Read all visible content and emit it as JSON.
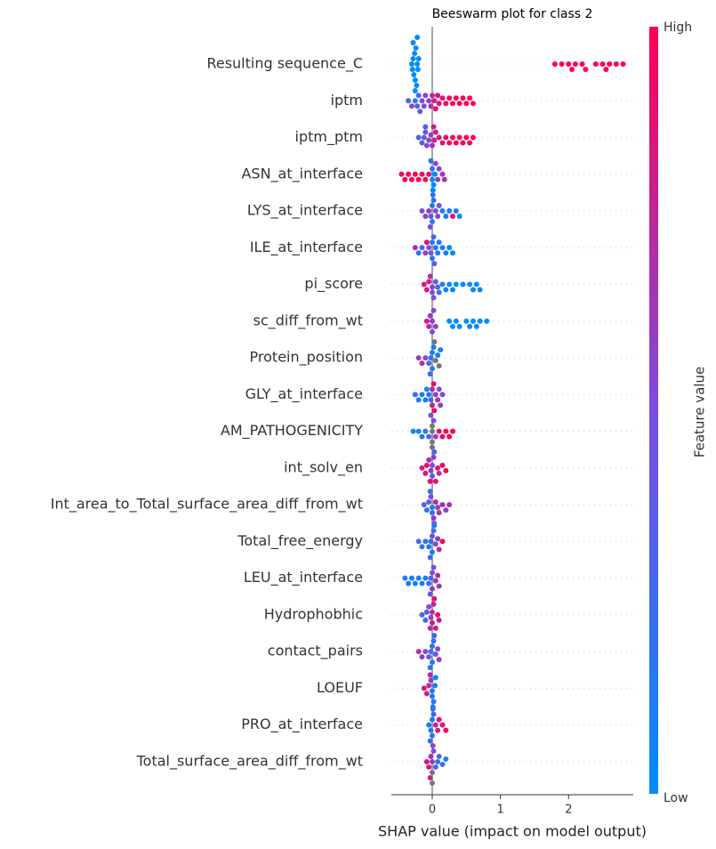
{
  "chart_data": {
    "type": "beeswarm",
    "title": "Beeswarm plot for class 2",
    "x_label": "SHAP value (impact on model output)",
    "xlim": [
      -0.6,
      2.95
    ],
    "xticks": [
      0,
      1,
      2
    ],
    "colorbar_label": "Feature value",
    "colorbar_high": "High",
    "colorbar_low": "Low",
    "colormap": [
      "#008bfb",
      "#7c4ce0",
      "#ff0052"
    ],
    "missing_color": "#777777",
    "series": [
      {
        "name": "Resulting sequence_C",
        "values": [
          -0.3,
          -0.29,
          -0.28,
          -0.27,
          -0.26,
          -0.25,
          -0.24,
          -0.23,
          -0.22,
          -0.21,
          -0.2,
          -0.28,
          -0.25,
          -0.22,
          1.8,
          1.9,
          2.0,
          2.05,
          2.1,
          2.2,
          2.25,
          2.4,
          2.5,
          2.55,
          2.6,
          2.7,
          2.8
        ],
        "feature_values": [
          0,
          0,
          0,
          0,
          0,
          0,
          0,
          0,
          0,
          0,
          0,
          0,
          0,
          0,
          1,
          1,
          1,
          1,
          1,
          1,
          1,
          1,
          1,
          1,
          1,
          1,
          1
        ]
      },
      {
        "name": "iptm",
        "values": [
          -0.35,
          -0.3,
          -0.25,
          -0.22,
          -0.2,
          -0.15,
          -0.12,
          -0.1,
          -0.05,
          -0.02,
          0,
          0.03,
          0.05,
          0.1,
          0.15,
          0.2,
          0.25,
          0.3,
          0.35,
          0.4,
          0.45,
          0.5,
          0.55,
          0.6,
          -0.18,
          0.08
        ],
        "feature_values": [
          0.3,
          0.5,
          0.2,
          0.4,
          0.3,
          0.5,
          0.45,
          0.6,
          0.55,
          0.7,
          0.75,
          0.8,
          0.85,
          0.9,
          0.85,
          0.95,
          1,
          0.9,
          1,
          1,
          0.95,
          1,
          1,
          0.95,
          0.35,
          0.9
        ]
      },
      {
        "name": "iptm_ptm",
        "values": [
          -0.2,
          -0.15,
          -0.12,
          -0.1,
          -0.08,
          -0.05,
          -0.02,
          0,
          0.03,
          0.05,
          0.1,
          0.15,
          0.2,
          0.25,
          0.3,
          0.35,
          0.4,
          0.45,
          0.5,
          0.55,
          0.6,
          -0.1,
          0.02
        ],
        "feature_values": [
          0.3,
          0.35,
          0.45,
          0.4,
          0.5,
          0.55,
          0.6,
          0.7,
          0.75,
          0.8,
          0.9,
          0.85,
          0.95,
          1,
          0.9,
          1,
          1,
          0.95,
          1,
          1,
          0.95,
          0.3,
          0.8
        ]
      },
      {
        "name": "ASN_at_interface",
        "values": [
          -0.45,
          -0.4,
          -0.35,
          -0.3,
          -0.25,
          -0.2,
          -0.15,
          -0.1,
          -0.05,
          0,
          0,
          0.02,
          0.04,
          0.05,
          0.08,
          0.1,
          0.15,
          0.18,
          -0.02,
          0.01
        ],
        "feature_values": [
          1,
          1,
          1,
          1,
          1,
          1,
          1,
          0.95,
          0.9,
          0,
          0.1,
          0,
          0.05,
          0.5,
          0.6,
          0.55,
          0.6,
          0.65,
          0.2,
          0
        ]
      },
      {
        "name": "LYS_at_interface",
        "values": [
          -0.15,
          -0.1,
          -0.05,
          -0.02,
          0,
          0,
          0.02,
          0.05,
          0.08,
          0.1,
          0.15,
          0.2,
          0.25,
          0.3,
          0.35,
          0.4,
          -0.03,
          0.01
        ],
        "feature_values": [
          0.5,
          0.55,
          0.6,
          0.4,
          0.1,
          0.2,
          0.3,
          0.5,
          0.6,
          0.5,
          0.1,
          0.05,
          0.1,
          0.9,
          0.1,
          0,
          0.5,
          0.2
        ]
      },
      {
        "name": "ILE_at_interface",
        "values": [
          -0.25,
          -0.2,
          -0.15,
          -0.1,
          -0.05,
          -0.02,
          0,
          0,
          0.02,
          0.05,
          0.08,
          0.1,
          0.15,
          0.2,
          0.25,
          0.3,
          -0.08,
          0.03
        ],
        "feature_values": [
          0.7,
          0.2,
          0.3,
          0.6,
          0.5,
          0.4,
          0.1,
          0.2,
          0.3,
          0.2,
          0.1,
          0.15,
          0.1,
          0.05,
          0.05,
          0,
          0.9,
          0.4
        ]
      },
      {
        "name": "pi_score",
        "values": [
          -0.12,
          -0.08,
          -0.05,
          -0.03,
          0,
          0,
          0.02,
          0.05,
          0.08,
          0.1,
          0.15,
          0.2,
          0.25,
          0.3,
          0.35,
          0.45,
          0.55,
          0.6,
          0.65,
          0.7
        ],
        "feature_values": [
          0.9,
          0.85,
          0.8,
          0.7,
          0.6,
          0.5,
          0.5,
          0.4,
          0.3,
          0.2,
          0.1,
          0.05,
          0.05,
          0,
          0,
          0,
          0,
          0,
          0,
          0
        ]
      },
      {
        "name": "sc_diff_from_wt",
        "values": [
          -0.08,
          -0.05,
          -0.03,
          0,
          0,
          0.02,
          0.05,
          0.25,
          0.3,
          0.35,
          0.4,
          0.5,
          0.55,
          0.6,
          0.65,
          0.7,
          0.8
        ],
        "feature_values": [
          0.8,
          0.7,
          0.6,
          0.6,
          0.5,
          0.55,
          0.6,
          0,
          0,
          0,
          0,
          0,
          0,
          0,
          0,
          0,
          0
        ]
      },
      {
        "name": "Protein_position",
        "values": [
          -0.2,
          -0.15,
          -0.1,
          -0.05,
          -0.02,
          0,
          0,
          0.02,
          0.05,
          0.08,
          0.1,
          0.12,
          -0.03,
          0.03
        ],
        "feature_values": [
          0.6,
          0.7,
          0.5,
          0.3,
          0.2,
          0.1,
          0.2,
          0.15,
          null,
          0.1,
          null,
          0.1,
          0.25,
          null
        ]
      },
      {
        "name": "GLY_at_interface",
        "values": [
          -0.25,
          -0.2,
          -0.15,
          -0.1,
          -0.05,
          -0.02,
          0,
          0,
          0.02,
          0.05,
          0.08,
          0.1,
          0.12,
          0.15,
          -0.08,
          0.03
        ],
        "feature_values": [
          0.2,
          0.1,
          0.15,
          0.1,
          0.1,
          0.2,
          0.7,
          0.8,
          0.9,
          0.6,
          0.65,
          0.5,
          0.6,
          0.55,
          0.1,
          0.9
        ]
      },
      {
        "name": "AM_PATHOGENICITY",
        "values": [
          -0.28,
          -0.2,
          -0.15,
          -0.1,
          -0.05,
          0,
          0,
          0,
          0.02,
          0.05,
          0.1,
          0.15,
          0.2,
          0.25,
          0.3,
          0,
          -0.02
        ],
        "feature_values": [
          0.05,
          0.1,
          0.15,
          0.2,
          0.3,
          null,
          null,
          null,
          0.5,
          0.6,
          0.9,
          0.95,
          1,
          0.95,
          1,
          null,
          0.4
        ]
      },
      {
        "name": "int_solv_en",
        "values": [
          -0.15,
          -0.1,
          -0.08,
          -0.05,
          -0.02,
          0,
          0,
          0.02,
          0.05,
          0.08,
          0.1,
          0.15,
          0.2,
          -0.03,
          0.03
        ],
        "feature_values": [
          0.8,
          0.85,
          0.9,
          0.7,
          0.6,
          0.5,
          0.4,
          0.6,
          0.85,
          0.9,
          0.7,
          0.95,
          1,
          0.9,
          0.3
        ]
      },
      {
        "name": "Int_area_to_Total_surface_area_diff_from_wt",
        "values": [
          -0.12,
          -0.08,
          -0.05,
          -0.02,
          0,
          0,
          0.02,
          0.05,
          0.08,
          0.1,
          0.15,
          0.2,
          0.25,
          -0.03,
          0.03
        ],
        "feature_values": [
          0.3,
          0.2,
          0.4,
          0.5,
          0.1,
          0.2,
          0.6,
          0.7,
          0.6,
          0.65,
          0.7,
          0.6,
          0.65,
          0.2,
          0.5
        ]
      },
      {
        "name": "Total_free_energy",
        "values": [
          -0.2,
          -0.15,
          -0.1,
          -0.05,
          -0.02,
          0,
          0,
          0.02,
          0.05,
          0.08,
          0.1,
          0.15,
          -0.03,
          0.03
        ],
        "feature_values": [
          0.3,
          0.2,
          0.15,
          0.1,
          0.2,
          0.4,
          0.1,
          0.3,
          0.5,
          0.6,
          0.7,
          0.95,
          0.25,
          0.1
        ]
      },
      {
        "name": "LEU_at_interface",
        "values": [
          -0.4,
          -0.35,
          -0.3,
          -0.25,
          -0.2,
          -0.15,
          -0.1,
          -0.05,
          -0.02,
          0,
          0,
          0.02,
          0.05,
          0.08,
          0.1,
          -0.03
        ],
        "feature_values": [
          0.1,
          0.1,
          0.1,
          0.05,
          0.1,
          0.1,
          0.15,
          0.2,
          0.3,
          0.5,
          0.6,
          0.5,
          0.6,
          0.7,
          0.65,
          0.4
        ]
      },
      {
        "name": "Hydrophobhic",
        "values": [
          -0.15,
          -0.1,
          -0.08,
          -0.05,
          -0.02,
          0,
          0,
          0.02,
          0.05,
          0.08,
          0.1,
          -0.03,
          0.03
        ],
        "feature_values": [
          0.3,
          0.2,
          0.4,
          0.5,
          0.6,
          0.7,
          0.8,
          0.75,
          0.85,
          0.9,
          0.8,
          0.65,
          0.9
        ]
      },
      {
        "name": "contact_pairs",
        "values": [
          -0.2,
          -0.15,
          -0.1,
          -0.05,
          -0.02,
          0,
          0,
          0.02,
          0.05,
          0.08,
          0.1,
          -0.03,
          0.03
        ],
        "feature_values": [
          0.7,
          0.6,
          0.5,
          0.4,
          0.3,
          0.2,
          0.1,
          0.2,
          0.4,
          0.5,
          0.6,
          0.2,
          0.3
        ]
      },
      {
        "name": "LOEUF",
        "values": [
          -0.12,
          -0.08,
          -0.05,
          -0.02,
          0,
          0,
          0.02,
          0.04,
          0.05,
          -0.03,
          0.01
        ],
        "feature_values": [
          0.85,
          0.8,
          0.7,
          0.6,
          0.2,
          0.1,
          0.15,
          0.1,
          0.05,
          0.75,
          0.1
        ]
      },
      {
        "name": "PRO_at_interface",
        "values": [
          -0.05,
          -0.02,
          0,
          0,
          0.02,
          0.05,
          0.08,
          0.1,
          0.15,
          0.2,
          -0.03,
          0.01
        ],
        "feature_values": [
          0.1,
          0.2,
          0.1,
          0.2,
          0.3,
          0.7,
          0.8,
          0.85,
          0.9,
          0.95,
          0.15,
          0.2
        ]
      },
      {
        "name": "Total_surface_area_diff_from_wt",
        "values": [
          -0.08,
          -0.05,
          -0.02,
          0,
          0,
          0.02,
          0.05,
          0.08,
          0.1,
          0.15,
          0.2,
          -0.03,
          0.01,
          0
        ],
        "feature_values": [
          0.9,
          0.85,
          0.7,
          0.6,
          null,
          0.5,
          0.3,
          0.2,
          0.3,
          0.2,
          0.1,
          0.8,
          0.6,
          null
        ]
      }
    ]
  }
}
